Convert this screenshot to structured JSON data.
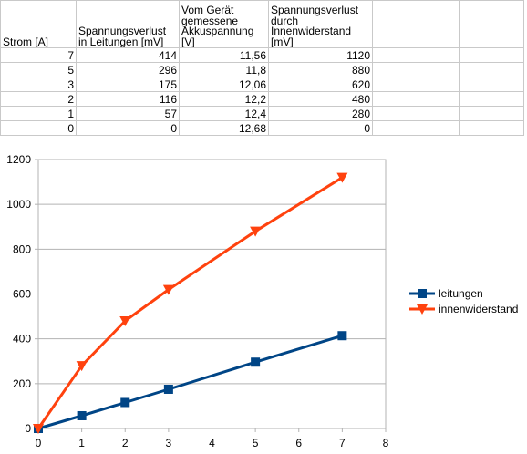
{
  "spreadsheet": {
    "headers": [
      "Strom [A]",
      "Spannungsverlust in Leitungen [mV]",
      "Vom Gerät gemessene Akkuspannung [V]",
      "Spannungsverlust durch Innenwiderstand [mV]"
    ],
    "rows": [
      [
        "7",
        "414",
        "11,56",
        "1120"
      ],
      [
        "5",
        "296",
        "11,8",
        "880"
      ],
      [
        "3",
        "175",
        "12,06",
        "620"
      ],
      [
        "2",
        "116",
        "12,2",
        "480"
      ],
      [
        "1",
        "57",
        "12,4",
        "280"
      ],
      [
        "0",
        "0",
        "12,68",
        "0"
      ]
    ]
  },
  "chart_data": {
    "type": "line",
    "title": "",
    "xlabel": "",
    "ylabel": "",
    "xlim": [
      0,
      8
    ],
    "ylim": [
      0,
      1200
    ],
    "x_ticks": [
      "0",
      "1",
      "2",
      "3",
      "4",
      "5",
      "6",
      "7",
      "8"
    ],
    "y_ticks": [
      "0",
      "200",
      "400",
      "600",
      "800",
      "1000",
      "1200"
    ],
    "grid": "horizontal",
    "legend_position": "right",
    "series": [
      {
        "name": "leitungen",
        "color": "#004586",
        "marker": "square",
        "x": [
          0,
          1,
          2,
          3,
          5,
          7
        ],
        "y": [
          0,
          57,
          116,
          175,
          296,
          414
        ]
      },
      {
        "name": "innenwiderstand",
        "color": "#ff420e",
        "marker": "triangle-down",
        "x": [
          0,
          1,
          2,
          3,
          5,
          7
        ],
        "y": [
          0,
          280,
          480,
          620,
          880,
          1120
        ]
      }
    ]
  }
}
